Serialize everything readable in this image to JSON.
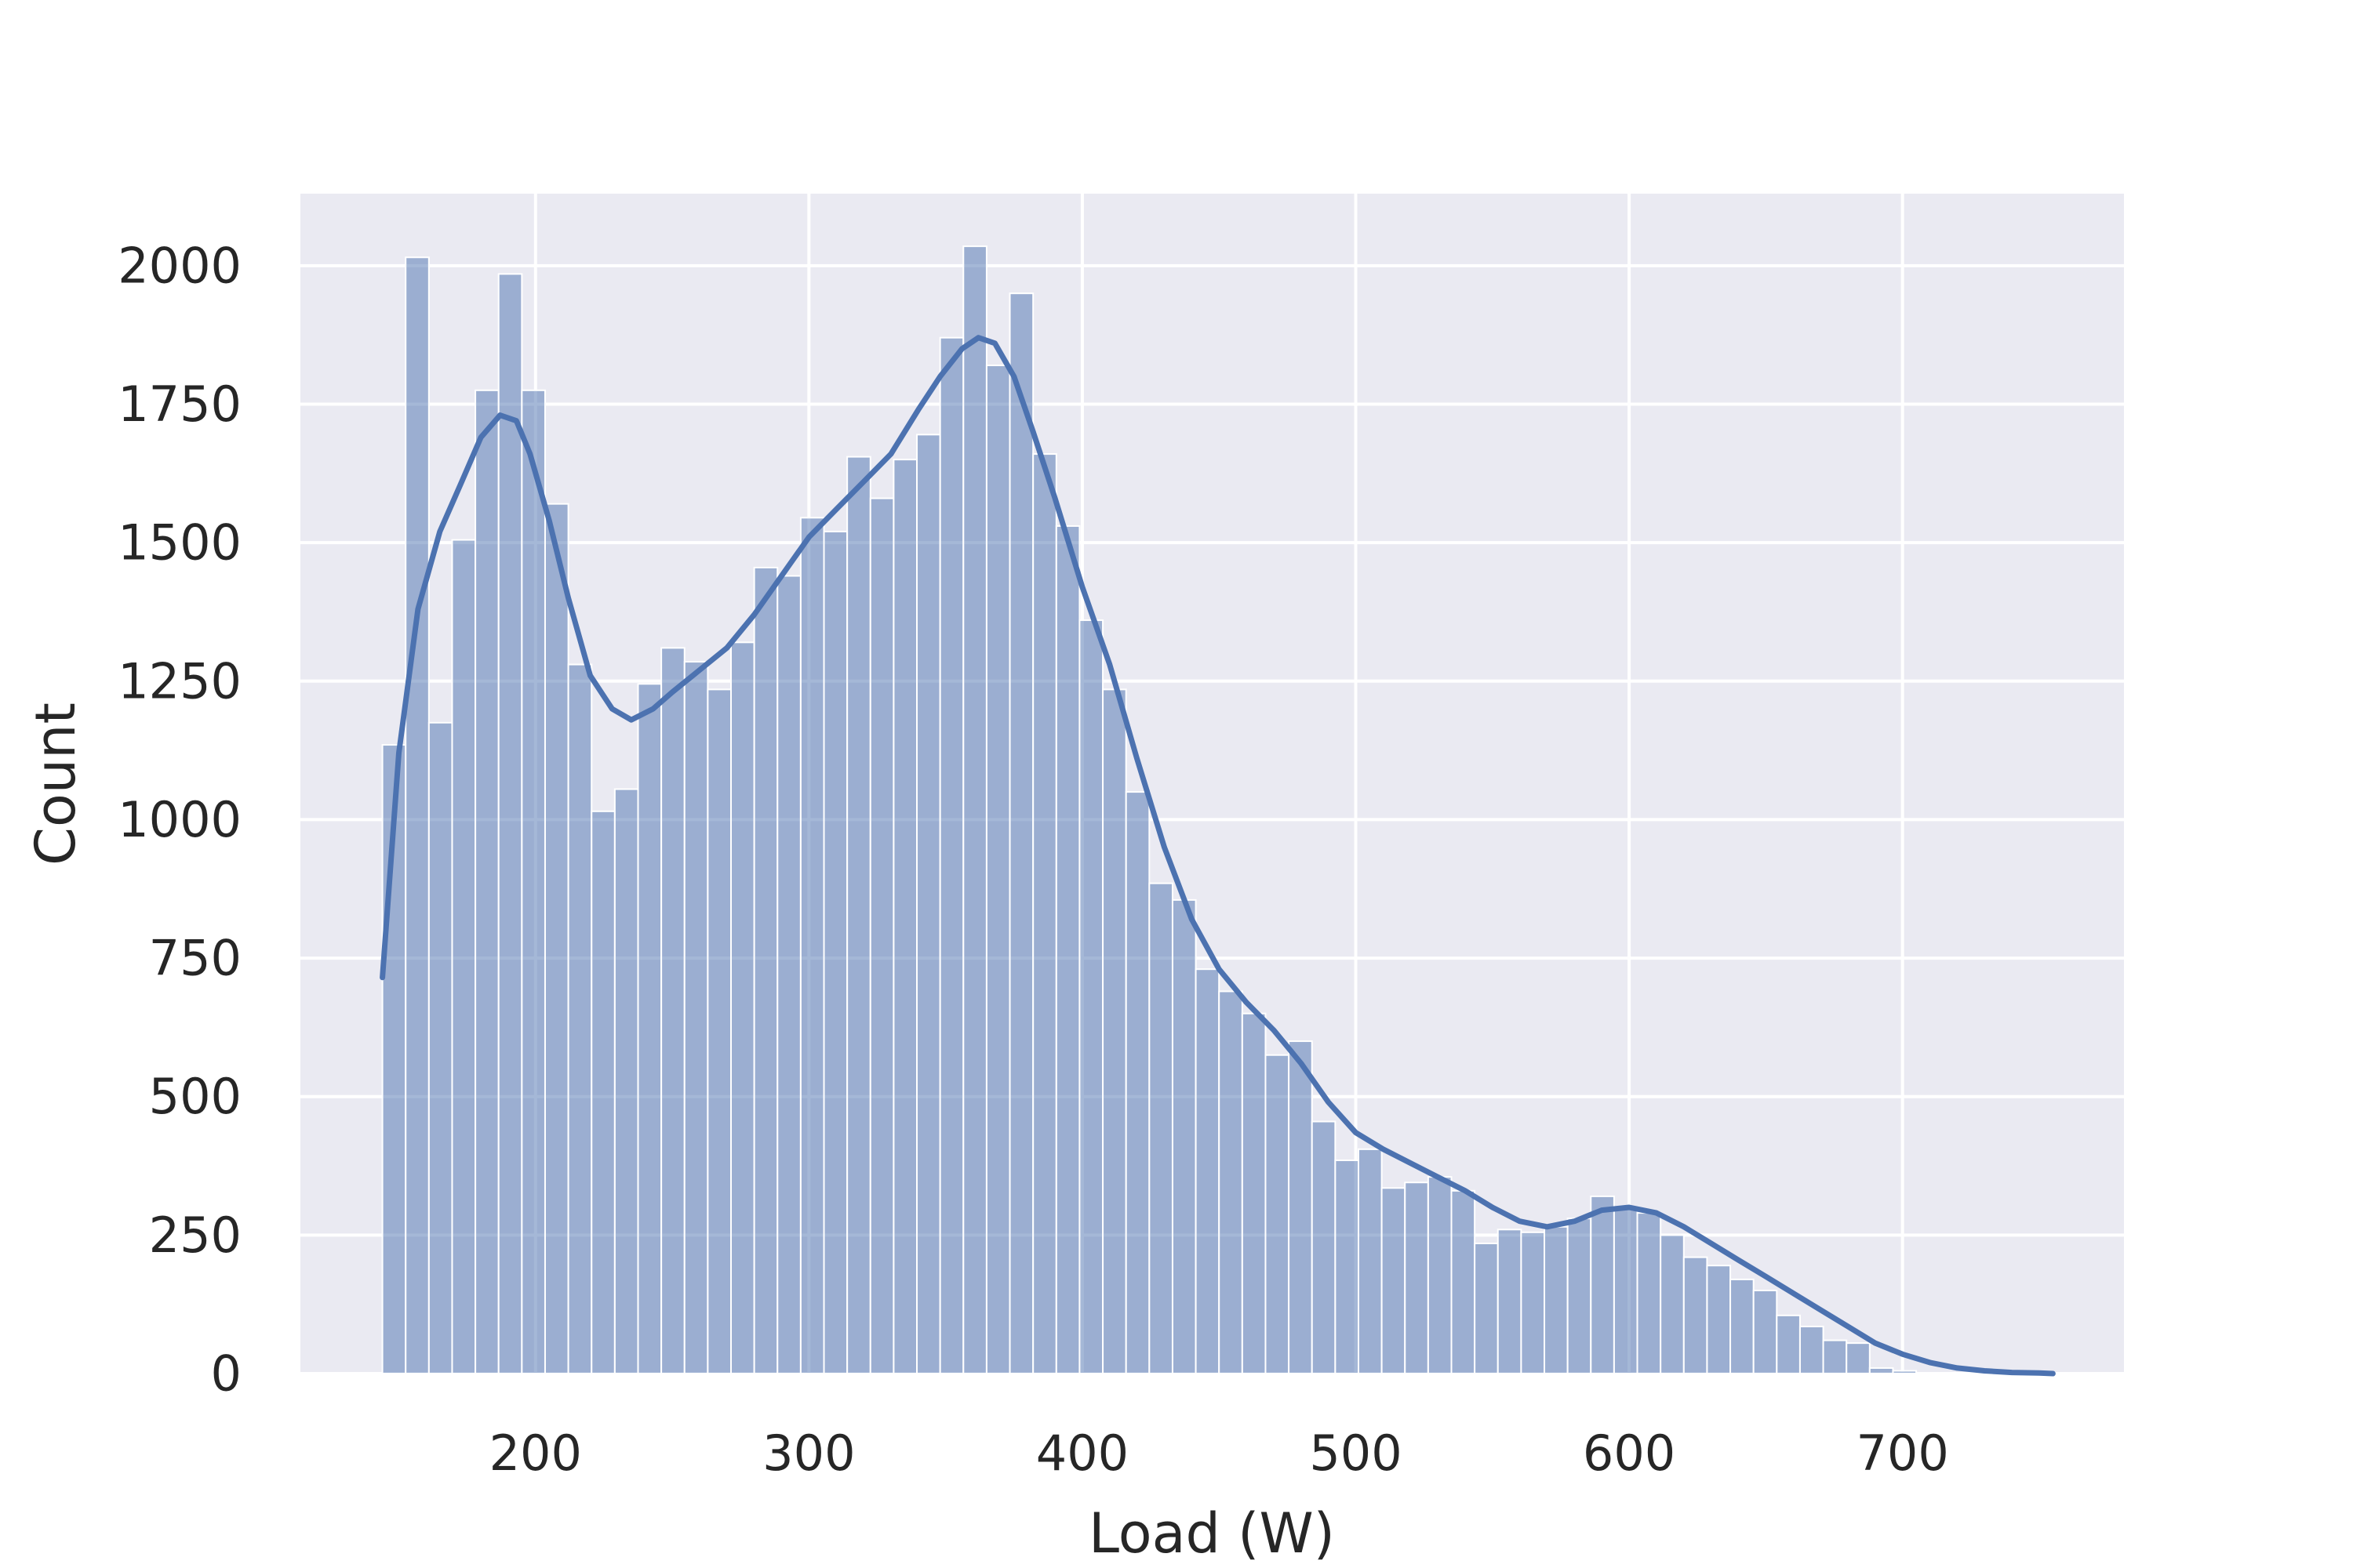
{
  "chart_data": {
    "type": "bar",
    "subtype": "histogram_with_kde",
    "title": "",
    "xlabel": "Load (W)",
    "ylabel": "Count",
    "xlim": [
      114,
      781
    ],
    "ylim": [
      0,
      2130
    ],
    "xticks": [
      200,
      300,
      400,
      500,
      600,
      700
    ],
    "yticks": [
      0,
      250,
      500,
      750,
      1000,
      1250,
      1500,
      1750,
      2000
    ],
    "grid": true,
    "legend": "none",
    "colors": {
      "background": "#eaeaf2",
      "bar_fill": "#4c72b0",
      "kde_line": "#4c72b0",
      "grid": "#ffffff",
      "text": "#262626"
    },
    "bins": {
      "start": 144,
      "width": 8.5,
      "counts": [
        1135,
        2015,
        1175,
        1505,
        1775,
        1985,
        1775,
        1570,
        1280,
        1015,
        1055,
        1245,
        1310,
        1285,
        1235,
        1320,
        1455,
        1440,
        1545,
        1520,
        1655,
        1580,
        1650,
        1695,
        1870,
        2035,
        1820,
        1950,
        1660,
        1530,
        1360,
        1235,
        1050,
        885,
        855,
        730,
        690,
        650,
        575,
        600,
        455,
        385,
        405,
        335,
        345,
        355,
        330,
        235,
        260,
        255,
        265,
        280,
        320,
        300,
        290,
        250,
        210,
        195,
        170,
        150,
        105,
        85,
        60,
        55,
        10,
        5,
        0,
        0,
        0,
        0,
        0,
        0
      ]
    },
    "kde": {
      "x": [
        144,
        150,
        157,
        165,
        173,
        180,
        187,
        193,
        198,
        205,
        212,
        220,
        228,
        235,
        243,
        250,
        260,
        270,
        280,
        290,
        300,
        310,
        320,
        330,
        340,
        348,
        356,
        362,
        368,
        375,
        382,
        390,
        400,
        410,
        420,
        430,
        440,
        450,
        460,
        470,
        480,
        490,
        500,
        510,
        520,
        530,
        540,
        550,
        560,
        570,
        580,
        590,
        600,
        610,
        620,
        630,
        640,
        650,
        660,
        670,
        680,
        690,
        700,
        710,
        720,
        730,
        740,
        750,
        755
      ],
      "y": [
        715,
        1120,
        1380,
        1520,
        1610,
        1690,
        1730,
        1720,
        1660,
        1540,
        1400,
        1260,
        1200,
        1180,
        1200,
        1230,
        1270,
        1310,
        1370,
        1440,
        1510,
        1560,
        1610,
        1660,
        1740,
        1800,
        1850,
        1870,
        1860,
        1800,
        1700,
        1580,
        1420,
        1280,
        1110,
        950,
        820,
        730,
        670,
        620,
        560,
        490,
        435,
        405,
        380,
        355,
        330,
        300,
        275,
        265,
        275,
        295,
        300,
        290,
        265,
        235,
        205,
        175,
        145,
        115,
        85,
        55,
        35,
        20,
        10,
        5,
        2,
        1,
        0
      ]
    }
  }
}
